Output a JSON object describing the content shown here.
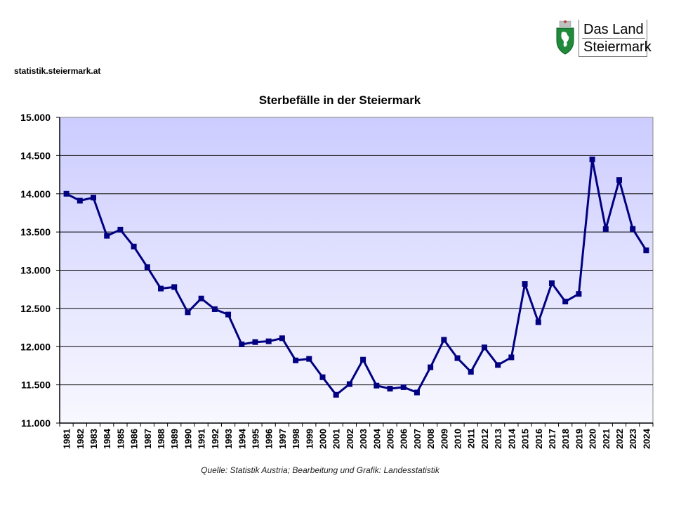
{
  "header": {
    "site": "statistik.steiermark.at",
    "logo": {
      "line1": "Das Land",
      "line2": "Steiermark",
      "icon": "coat-of-arms-icon"
    }
  },
  "footer": {
    "source": "Quelle:  Statistik Austria; Bearbeitung und  Grafik: Landesstatistik"
  },
  "colors": {
    "line": "#000080",
    "plot_top": "#ccccff",
    "plot_bottom": "#f8f8ff",
    "grid": "#000000"
  },
  "chart_data": {
    "type": "line",
    "title": "Sterbefälle in der Steiermark",
    "xlabel": "",
    "ylabel": "",
    "ylim": [
      11000,
      15000
    ],
    "yticks": [
      11000,
      11500,
      12000,
      12500,
      13000,
      13500,
      14000,
      14500,
      15000
    ],
    "ytick_labels": [
      "11.000",
      "11.500",
      "12.000",
      "12.500",
      "13.000",
      "13.500",
      "14.000",
      "14.500",
      "15.000"
    ],
    "grid": true,
    "legend": "none",
    "categories": [
      "1981",
      "1982",
      "1983",
      "1984",
      "1985",
      "1986",
      "1987",
      "1988",
      "1989",
      "1990",
      "1991",
      "1992",
      "1993",
      "1994",
      "1995",
      "1996",
      "1997",
      "1998",
      "1999",
      "2000",
      "2001",
      "2002",
      "2003",
      "2004",
      "2005",
      "2006",
      "2007",
      "2008",
      "2009",
      "2010",
      "2011",
      "2012",
      "2013",
      "2014",
      "2015",
      "2016",
      "2017",
      "2018",
      "2019",
      "2020",
      "2021",
      "2022",
      "2023",
      "2024"
    ],
    "series": [
      {
        "name": "Sterbefälle",
        "values": [
          14000,
          13910,
          13950,
          13450,
          13530,
          13310,
          13040,
          12760,
          12780,
          12450,
          12630,
          12490,
          12420,
          12030,
          12060,
          12070,
          12110,
          11820,
          11840,
          11600,
          11370,
          11510,
          11830,
          11490,
          11450,
          11470,
          11400,
          11730,
          12090,
          11850,
          11670,
          11990,
          11760,
          11860,
          12820,
          12320,
          12830,
          12590,
          12690,
          14450,
          13540,
          14180,
          13540,
          13260
        ]
      }
    ]
  }
}
